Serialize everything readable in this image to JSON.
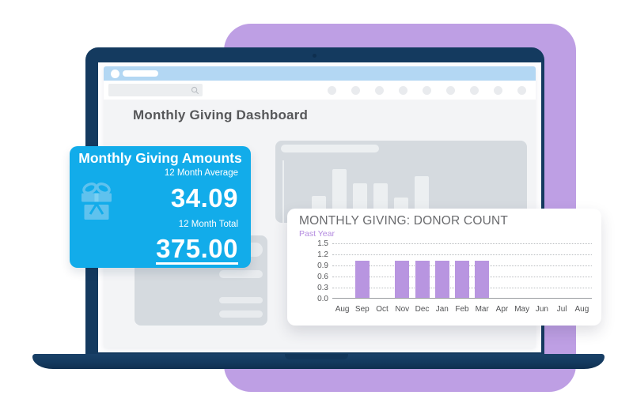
{
  "page": {
    "background_color": "#FFFFFF",
    "accent_square_color": "#BE9FE4",
    "laptop_color": "#143A5F"
  },
  "browser": {
    "titlebar_color": "#B3D7F3",
    "search": {
      "value": "",
      "placeholder": ""
    },
    "toolbar_button_count": 9
  },
  "dashboard": {
    "heading": "Monthly Giving Dashboard"
  },
  "amounts_card": {
    "title": "Monthly Giving Amounts",
    "accent_color": "#12ACEA",
    "icon": "gift-icon",
    "metrics": [
      {
        "label": "12 Month Average",
        "value": "34.09",
        "underlined": false
      },
      {
        "label": "12 Month Total",
        "value": "375.00",
        "underlined": true
      }
    ]
  },
  "chart_data": {
    "type": "bar",
    "title": "MONTHLY GIVING: DONOR COUNT",
    "subtitle": "Past Year",
    "subtitle_color": "#B48CE0",
    "categories": [
      "Aug",
      "Sep",
      "Oct",
      "Nov",
      "Dec",
      "Jan",
      "Feb",
      "Mar",
      "Apr",
      "May",
      "Jun",
      "Jul",
      "Aug"
    ],
    "values": [
      0,
      1,
      0,
      1,
      1,
      1,
      1,
      1,
      0,
      0,
      0,
      0,
      0
    ],
    "ylim": [
      0,
      1.5
    ],
    "yticks": [
      "0.0",
      "0.3",
      "0.6",
      "0.9",
      "1.2",
      "1.5"
    ],
    "xlabel": "",
    "ylabel": "",
    "grid": "dotted-horizontal",
    "legend": "none",
    "bar_color": "#B895E0"
  },
  "skeleton": {
    "chart_card": {
      "bar_heights": [
        34,
        68,
        50,
        50,
        32,
        59
      ]
    },
    "list_card": {
      "row_count": 4
    }
  }
}
